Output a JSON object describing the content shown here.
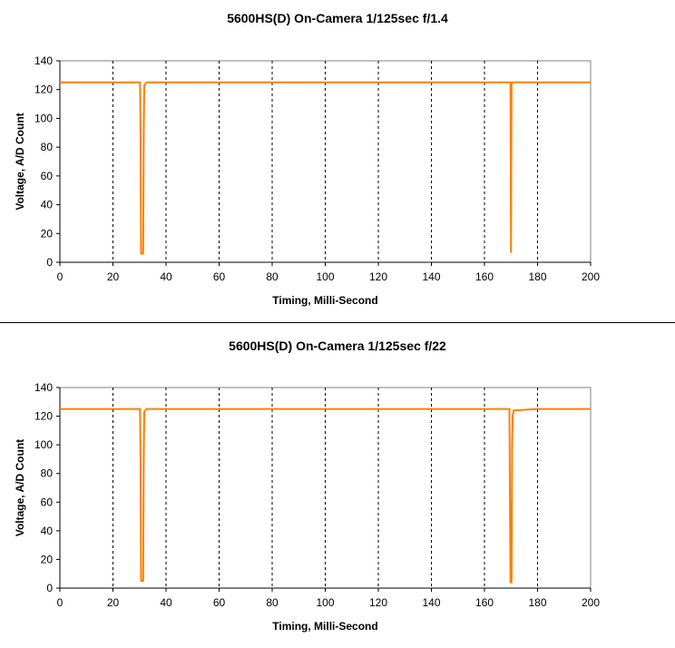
{
  "chart_data": [
    {
      "type": "line",
      "title": "5600HS(D) On-Camera 1/125sec f/1.4",
      "xlabel": "Timing, Milli-Second",
      "ylabel": "Voltage, A/D Count",
      "xlim": [
        0,
        200
      ],
      "ylim": [
        0,
        140
      ],
      "xticks": [
        0,
        20,
        40,
        60,
        80,
        100,
        120,
        140,
        160,
        180,
        200
      ],
      "yticks": [
        0,
        20,
        40,
        60,
        80,
        100,
        120,
        140
      ],
      "grid": "vertical dashed",
      "legend": "none",
      "series": [
        {
          "color": "#ff7f00",
          "x": [
            0,
            10,
            20,
            30.2,
            30.4,
            30.6,
            31.4,
            31.6,
            31.8,
            32.6,
            40,
            60,
            80,
            100,
            120,
            140,
            160,
            169.8,
            170.0,
            170.2,
            170.4,
            180,
            200
          ],
          "y": [
            125,
            125,
            125,
            125,
            90,
            6,
            6,
            90,
            123,
            125,
            125,
            125,
            125,
            125,
            125,
            125,
            125,
            125,
            7,
            124,
            125,
            125,
            125
          ]
        }
      ]
    },
    {
      "type": "line",
      "title": "5600HS(D) On-Camera 1/125sec f/22",
      "xlabel": "Timing, Milli-Second",
      "ylabel": "Voltage, A/D Count",
      "xlim": [
        0,
        200
      ],
      "ylim": [
        0,
        140
      ],
      "xticks": [
        0,
        20,
        40,
        60,
        80,
        100,
        120,
        140,
        160,
        180,
        200
      ],
      "yticks": [
        0,
        20,
        40,
        60,
        80,
        100,
        120,
        140
      ],
      "grid": "vertical dashed",
      "legend": "none",
      "series": [
        {
          "color": "#ff7f00",
          "x": [
            0,
            10,
            20,
            30.2,
            30.4,
            30.6,
            31.4,
            31.6,
            31.8,
            32.6,
            40,
            60,
            80,
            100,
            120,
            140,
            160,
            169.4,
            169.6,
            169.8,
            170.2,
            170.4,
            170.6,
            171.0,
            180,
            200
          ],
          "y": [
            125,
            125,
            125,
            125,
            90,
            5,
            5,
            90,
            123,
            125,
            125,
            125,
            125,
            125,
            125,
            125,
            125,
            125,
            60,
            4,
            4,
            100,
            120,
            124,
            125,
            125
          ]
        }
      ]
    }
  ]
}
